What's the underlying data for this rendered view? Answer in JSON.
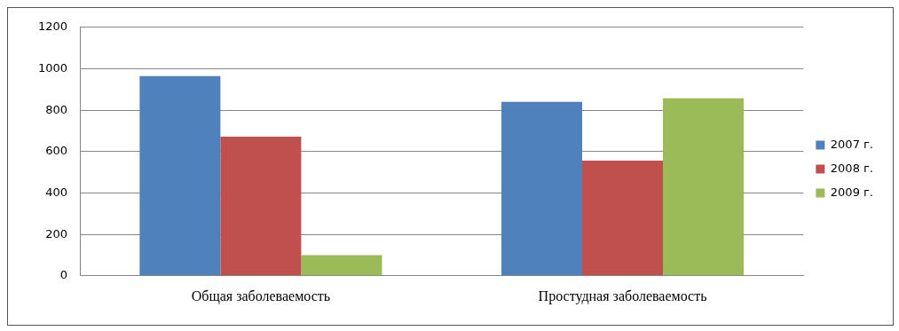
{
  "chart_data": {
    "type": "bar",
    "categories": [
      "Общая заболеваемость",
      "Простудная заболеваемость"
    ],
    "series": [
      {
        "name": "2007 г.",
        "color": "#4f81bd",
        "values": [
          965,
          840
        ]
      },
      {
        "name": "2008 г.",
        "color": "#c0504d",
        "values": [
          672,
          556
        ]
      },
      {
        "name": "2009 г.",
        "color": "#9bbb59",
        "values": [
          100,
          857
        ]
      }
    ],
    "ylim": [
      0,
      1200
    ],
    "yticks": [
      0,
      200,
      400,
      600,
      800,
      1000,
      1200
    ],
    "grid": "y",
    "legend": "right"
  }
}
